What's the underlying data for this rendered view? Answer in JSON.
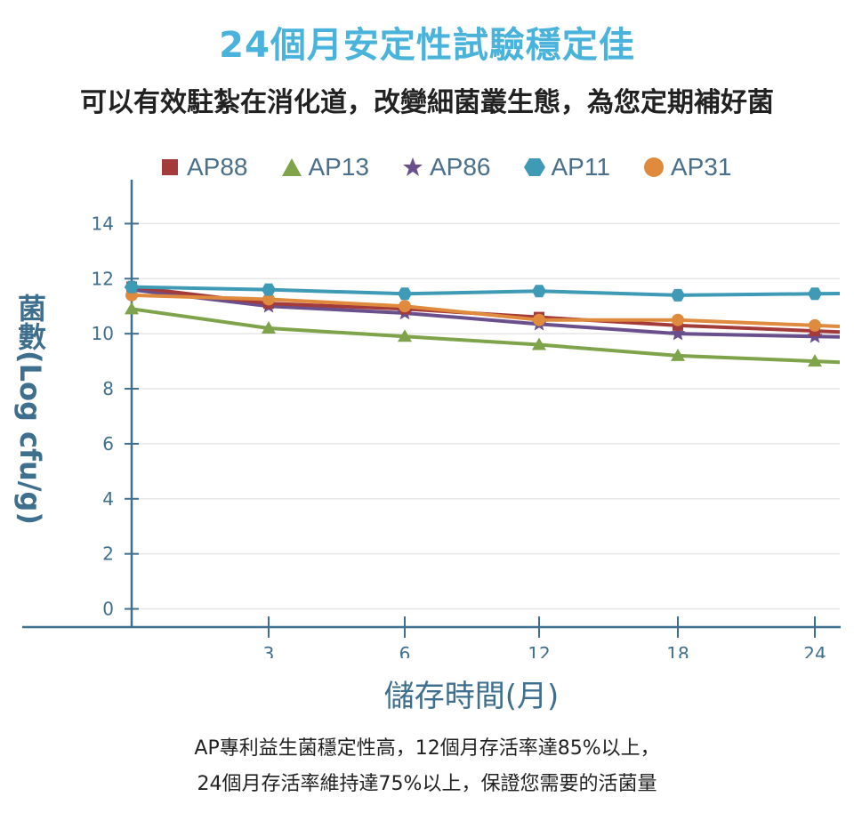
{
  "title": "24個月安定性試驗穩定佳",
  "subtitle": "可以有效駐紮在消化道，改變細菌叢生態，為您定期補好菌",
  "footnote": {
    "line1": "AP專利益生菌穩定性高，12個月存活率達85%以上，",
    "line2": "24個月存活率維持達75%以上，保證您需要的活菌量"
  },
  "chart_data": {
    "type": "line",
    "title": "24個月安定性試驗穩定佳",
    "xlabel": "儲存時間(月)",
    "ylabel": "菌數(Log cfu/g)",
    "x_positions": [
      0,
      1,
      2,
      3,
      4,
      5
    ],
    "x_tick_labels": [
      "",
      "3",
      "6",
      "12",
      "18",
      "24"
    ],
    "y_ticks": [
      0,
      2,
      4,
      6,
      8,
      10,
      12,
      14
    ],
    "ylim": [
      -0.5,
      15.5
    ],
    "grid": true,
    "legend_position": "top",
    "series": [
      {
        "name": "AP88",
        "marker": "square",
        "color": "#a43b3b",
        "values": [
          11.7,
          11.1,
          10.9,
          10.6,
          10.3,
          10.1
        ]
      },
      {
        "name": "AP13",
        "marker": "triangle",
        "color": "#7ea34a",
        "values": [
          10.9,
          10.2,
          9.9,
          9.6,
          9.2,
          9.0
        ]
      },
      {
        "name": "AP86",
        "marker": "star",
        "color": "#6a4f8d",
        "values": [
          11.6,
          11.0,
          10.75,
          10.35,
          10.0,
          9.9
        ]
      },
      {
        "name": "AP11",
        "marker": "hexagon",
        "color": "#3e9ab5",
        "values": [
          11.7,
          11.6,
          11.45,
          11.55,
          11.4,
          11.45
        ]
      },
      {
        "name": "AP31",
        "marker": "circle",
        "color": "#df8a3d",
        "values": [
          11.4,
          11.25,
          11.0,
          10.5,
          10.5,
          10.3
        ]
      }
    ]
  }
}
